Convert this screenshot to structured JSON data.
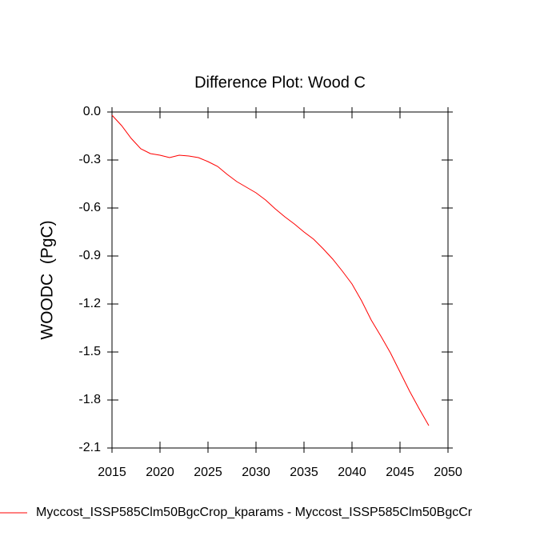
{
  "chart_data": {
    "type": "line",
    "title": "Difference Plot: Wood C",
    "y_label": "WOODC  (PgC)",
    "x": [
      2015,
      2016,
      2017,
      2018,
      2019,
      2020,
      2021,
      2022,
      2023,
      2024,
      2025,
      2026,
      2027,
      2028,
      2029,
      2030,
      2031,
      2032,
      2033,
      2034,
      2035,
      2036,
      2037,
      2038,
      2039,
      2040,
      2041,
      2042,
      2043,
      2044,
      2045,
      2046,
      2047,
      2048
    ],
    "series": [
      {
        "name": "Myccost_ISSP585Clm50BgcCrop_kparams - Myccost_ISSP585Clm50BgcCr",
        "color": "#ff0000",
        "values": [
          -0.02,
          -0.085,
          -0.165,
          -0.23,
          -0.26,
          -0.27,
          -0.285,
          -0.27,
          -0.275,
          -0.285,
          -0.31,
          -0.34,
          -0.39,
          -0.435,
          -0.47,
          -0.505,
          -0.55,
          -0.605,
          -0.655,
          -0.7,
          -0.75,
          -0.795,
          -0.855,
          -0.92,
          -0.995,
          -1.075,
          -1.18,
          -1.3,
          -1.4,
          -1.505,
          -1.625,
          -1.745,
          -1.855,
          -1.96
        ]
      }
    ],
    "xlim": [
      2015,
      2050
    ],
    "xticks": [
      2015,
      2020,
      2025,
      2030,
      2035,
      2040,
      2045,
      2050
    ],
    "ylim": [
      -2.1,
      0
    ],
    "yticks": [
      {
        "value": 0,
        "label": "0.0"
      },
      -0.3,
      -0.6,
      -0.9,
      -1.2,
      -1.5,
      -1.8,
      -2.1
    ],
    "grid": false,
    "legend": "bottom"
  }
}
